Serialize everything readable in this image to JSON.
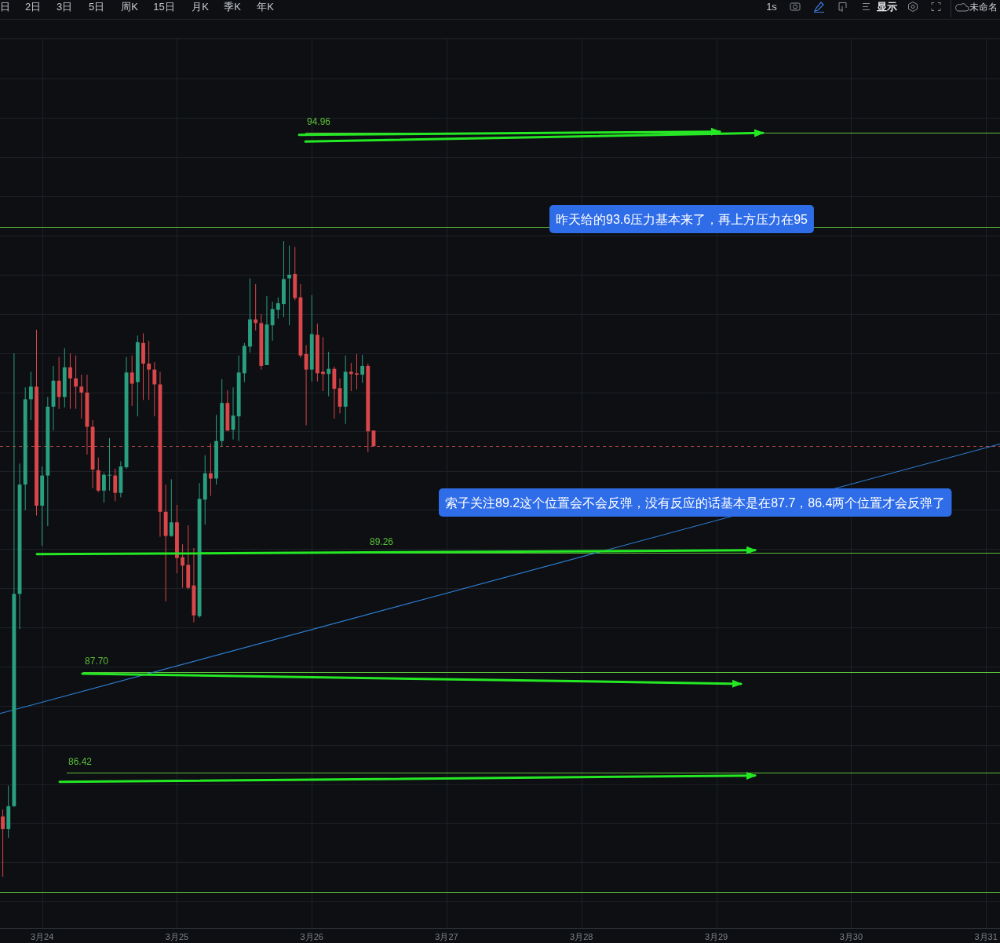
{
  "chart_data": {
    "type": "candlestick",
    "x": [
      "--03-23T17:00",
      "--03-23T18:00",
      "--03-23T19:00",
      "--03-23T20:00",
      "--03-23T21:00",
      "--03-23T22:00",
      "--03-23T23:00",
      "--03-24T00:00",
      "--03-24T01:00",
      "--03-24T02:00",
      "--03-24T03:00",
      "--03-24T04:00",
      "--03-24T05:00",
      "--03-24T06:00",
      "--03-24T07:00",
      "--03-24T08:00",
      "--03-24T09:00",
      "--03-24T10:00",
      "--03-24T11:00",
      "--03-24T12:00",
      "--03-24T13:00",
      "--03-24T14:00",
      "--03-24T15:00",
      "--03-24T16:00",
      "--03-24T17:00",
      "--03-24T18:00",
      "--03-24T19:00",
      "--03-24T20:00",
      "--03-24T21:00",
      "--03-24T22:00",
      "--03-24T23:00",
      "--03-25T00:00",
      "--03-25T01:00",
      "--03-25T02:00",
      "--03-25T03:00",
      "--03-25T04:00",
      "--03-25T05:00",
      "--03-25T06:00",
      "--03-25T07:00",
      "--03-25T08:00",
      "--03-25T09:00",
      "--03-25T10:00",
      "--03-25T11:00",
      "--03-25T12:00",
      "--03-25T13:00",
      "--03-25T14:00",
      "--03-25T15:00",
      "--03-25T16:00",
      "--03-25T17:00",
      "--03-25T18:00",
      "--03-25T19:00",
      "--03-25T20:00",
      "--03-25T21:00",
      "--03-25T22:00",
      "--03-25T23:00",
      "--03-26T00:00",
      "--03-26T01:00",
      "--03-26T02:00",
      "--03-26T03:00",
      "--03-26T04:00",
      "--03-26T05:00",
      "--03-26T06:00",
      "--03-26T07:00",
      "--03-26T08:00",
      "--03-26T09:00",
      "--03-26T10:00",
      "--03-26T11:00"
    ],
    "ohlc": [
      [
        85.86,
        85.95,
        85.1,
        85.7
      ],
      [
        85.7,
        86.25,
        85.59,
        85.99
      ],
      [
        85.99,
        91.92,
        85.98,
        88.72
      ],
      [
        88.72,
        90.44,
        88.26,
        90.16
      ],
      [
        90.16,
        91.46,
        89.82,
        91.3
      ],
      [
        91.3,
        91.67,
        91.02,
        91.47
      ],
      [
        91.47,
        92.24,
        89.75,
        89.88
      ],
      [
        89.88,
        90.4,
        89.35,
        90.28
      ],
      [
        90.28,
        91.33,
        89.61,
        91.2
      ],
      [
        91.2,
        91.75,
        90.88,
        91.55
      ],
      [
        91.55,
        91.87,
        91.17,
        91.33
      ],
      [
        91.33,
        91.99,
        91.19,
        91.73
      ],
      [
        91.73,
        91.92,
        91.17,
        91.58
      ],
      [
        91.58,
        91.89,
        91.17,
        91.47
      ],
      [
        91.47,
        91.63,
        91.04,
        91.39
      ],
      [
        91.39,
        91.63,
        90.56,
        90.93
      ],
      [
        90.93,
        91.02,
        90.11,
        90.36
      ],
      [
        90.35,
        90.52,
        90.06,
        90.08
      ],
      [
        90.08,
        90.32,
        89.92,
        90.29
      ],
      [
        90.28,
        90.78,
        90.08,
        90.29
      ],
      [
        90.28,
        90.37,
        89.94,
        90.05
      ],
      [
        90.05,
        90.47,
        89.99,
        90.4
      ],
      [
        90.39,
        91.87,
        90.37,
        91.66
      ],
      [
        91.66,
        91.89,
        91.21,
        91.51
      ],
      [
        91.53,
        92.16,
        91.07,
        92.07
      ],
      [
        92.06,
        92.19,
        91.29,
        91.78
      ],
      [
        91.78,
        92.09,
        91.29,
        91.7
      ],
      [
        91.7,
        91.8,
        91.07,
        91.5
      ],
      [
        91.5,
        91.67,
        89.47,
        89.8
      ],
      [
        89.8,
        90.16,
        88.62,
        89.48
      ],
      [
        89.48,
        90.23,
        89.47,
        89.66
      ],
      [
        89.66,
        89.89,
        88.99,
        89.19
      ],
      [
        89.2,
        89.37,
        88.8,
        89.09
      ],
      [
        89.1,
        89.62,
        88.78,
        88.8
      ],
      [
        88.83,
        89.32,
        88.35,
        88.44
      ],
      [
        88.43,
        90.18,
        88.41,
        89.97
      ],
      [
        89.96,
        90.55,
        89.63,
        90.31
      ],
      [
        90.31,
        90.71,
        90.01,
        90.24
      ],
      [
        90.24,
        91.09,
        90.16,
        90.74
      ],
      [
        90.74,
        91.57,
        90.67,
        91.25
      ],
      [
        91.25,
        91.42,
        90.87,
        90.88
      ],
      [
        90.89,
        91.46,
        90.76,
        91.08
      ],
      [
        91.07,
        91.89,
        90.74,
        91.66
      ],
      [
        91.65,
        92.06,
        91.53,
        92.02
      ],
      [
        92.01,
        92.94,
        91.93,
        92.38
      ],
      [
        92.38,
        92.86,
        92.23,
        92.33
      ],
      [
        92.33,
        92.45,
        91.7,
        91.75
      ],
      [
        91.76,
        92.7,
        91.76,
        92.31
      ],
      [
        92.3,
        92.62,
        92.09,
        92.52
      ],
      [
        92.51,
        92.68,
        92.39,
        92.6
      ],
      [
        92.59,
        93.45,
        92.41,
        92.93
      ],
      [
        92.94,
        93.39,
        92.3,
        92.99
      ],
      [
        93.0,
        93.37,
        92.64,
        92.67
      ],
      [
        92.68,
        92.86,
        91.86,
        91.89
      ],
      [
        91.91,
        92.03,
        90.95,
        91.7
      ],
      [
        91.7,
        92.71,
        91.54,
        92.18
      ],
      [
        92.17,
        92.32,
        91.54,
        91.65
      ],
      [
        91.67,
        92.14,
        91.41,
        91.64
      ],
      [
        91.64,
        91.94,
        91.34,
        91.71
      ],
      [
        91.71,
        91.74,
        91.04,
        91.44
      ],
      [
        91.45,
        91.58,
        91.11,
        91.2
      ],
      [
        91.2,
        91.89,
        90.97,
        91.67
      ],
      [
        91.67,
        91.79,
        91.41,
        91.64
      ],
      [
        91.65,
        91.91,
        91.43,
        91.63
      ],
      [
        91.63,
        91.9,
        91.52,
        91.75
      ],
      [
        91.75,
        91.78,
        90.59,
        90.87
      ],
      [
        90.88,
        90.88,
        90.67,
        90.67
      ]
    ],
    "series": [
      {
        "type": "line",
        "x": [
          "--03-23T16:30",
          "--03-31T02:30"
        ],
        "values": [
          87.17,
          90.7
        ],
        "color": "#2f7fd6"
      }
    ],
    "xlim": [
      "--03-23T16:30",
      "--03-31T02:30"
    ],
    "xticks": [
      {
        "value": "--03-24",
        "label": "3月24"
      },
      {
        "value": "--03-25",
        "label": "3月25"
      },
      {
        "value": "--03-26",
        "label": "3月26"
      },
      {
        "value": "--03-27",
        "label": "3月27"
      },
      {
        "value": "--03-28",
        "label": "3月28"
      },
      {
        "value": "--03-29",
        "label": "3月29"
      },
      {
        "value": "--03-30",
        "label": "3月30"
      },
      {
        "value": "--03-31",
        "label": "3月31"
      }
    ],
    "ylim": [
      84.46,
      96.27
    ],
    "yticks": [
      {
        "value": 95.71,
        "label": null
      },
      {
        "value": 95.16,
        "label": null
      },
      {
        "value": 94.61,
        "label": null
      },
      {
        "value": 94.07,
        "label": null
      },
      {
        "value": 93.53,
        "label": null
      },
      {
        "value": 92.99,
        "label": null
      },
      {
        "value": 92.45,
        "label": null
      },
      {
        "value": 91.92,
        "label": null
      },
      {
        "value": 91.39,
        "label": null
      },
      {
        "value": 90.87,
        "label": null
      },
      {
        "value": 90.34,
        "label": null
      },
      {
        "value": 89.83,
        "label": null
      },
      {
        "value": 89.31,
        "label": null
      },
      {
        "value": 88.8,
        "label": null
      },
      {
        "value": 88.28,
        "label": null
      },
      {
        "value": 87.78,
        "label": null
      },
      {
        "value": 87.27,
        "label": null
      },
      {
        "value": 86.77,
        "label": null
      },
      {
        "value": 86.27,
        "label": null
      },
      {
        "value": 85.78,
        "label": null
      },
      {
        "value": 85.28,
        "label": null
      },
      {
        "value": 84.79,
        "label": null
      }
    ],
    "log": true,
    "grid": true,
    "tick_labels": "x",
    "ref_lines": [
      {
        "axis": "y",
        "value": 94.96,
        "label": "94.96",
        "color": "#5cbf3a"
      },
      {
        "axis": "y",
        "value": 93.65,
        "color": "#5cbf3a"
      },
      {
        "axis": "y",
        "value": 89.26,
        "label": "89.26",
        "color": "#5cbf3a"
      },
      {
        "axis": "y",
        "value": 87.7,
        "label": "87.70",
        "color": "#5cbf3a"
      },
      {
        "axis": "y",
        "value": 86.42,
        "label": "86.42",
        "color": "#5cbf3a"
      },
      {
        "axis": "y",
        "value": 84.91,
        "color": "#5cbf3a"
      },
      {
        "axis": "y",
        "value": 90.67,
        "color": "#b8484a",
        "line_style": "dashed"
      }
    ],
    "annotations": [
      "昨天给的93.6压力基本来了，再上方压力在95",
      "索子关注89.2这个位置会不会反弹，没有反应的话基本是在87.7，86.4两个位置才会反弹了",
      "日",
      "2日",
      "3日",
      "5日",
      "周K",
      "15日",
      "月K",
      "季K",
      "年K",
      "1s",
      "显示",
      "未命名"
    ]
  }
}
